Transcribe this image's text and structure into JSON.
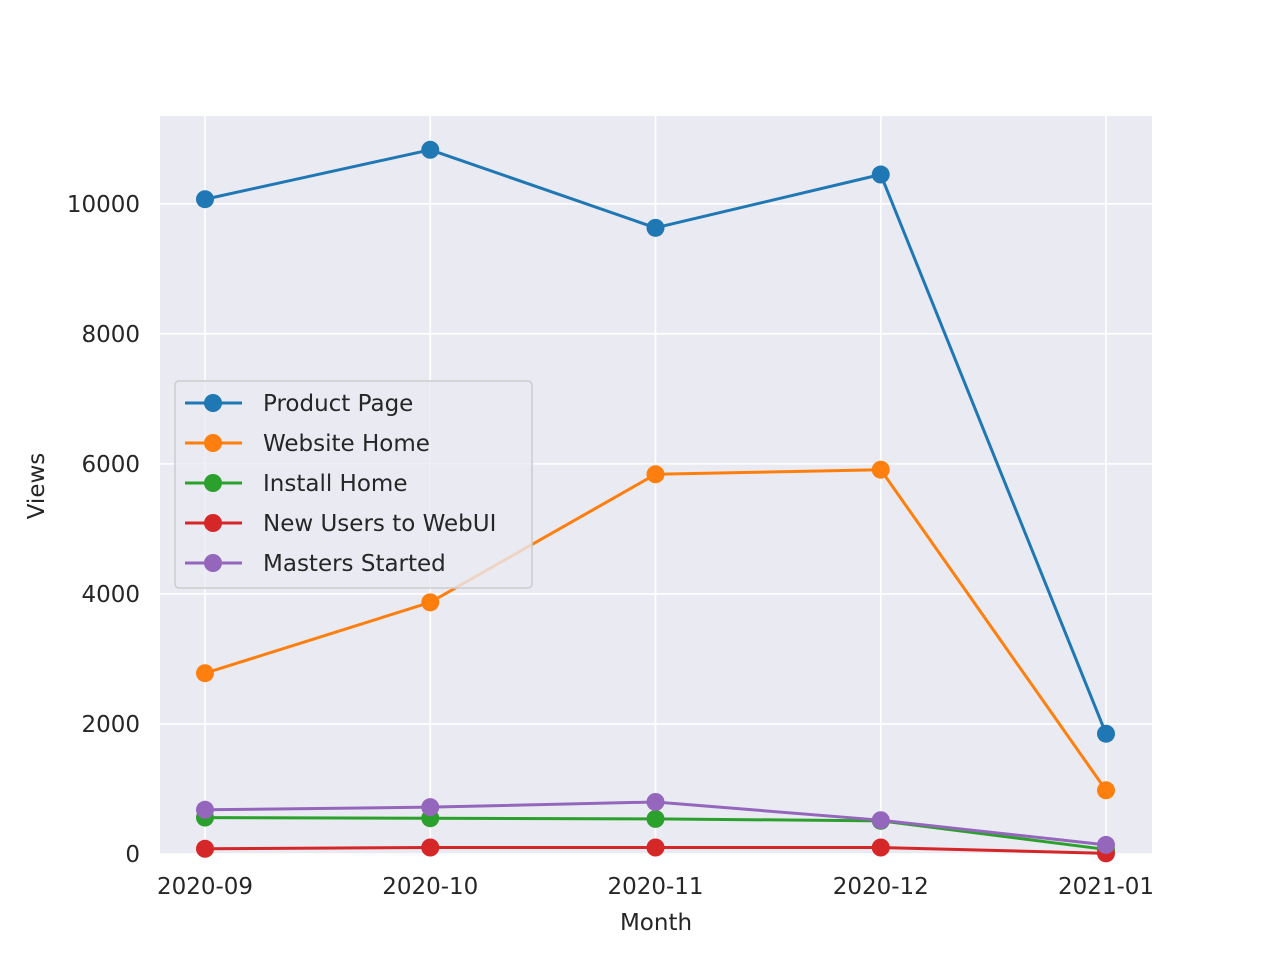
{
  "chart_data": {
    "type": "line",
    "title": "",
    "xlabel": "Month",
    "ylabel": "Views",
    "categories": [
      "2020-09",
      "2020-10",
      "2020-11",
      "2020-12",
      "2021-01"
    ],
    "ylim": [
      0,
      11350
    ],
    "yticks": [
      0,
      2000,
      4000,
      6000,
      8000,
      10000
    ],
    "grid": true,
    "legend_position": "center-left",
    "background": "#eaeaf2",
    "series": [
      {
        "name": "Product Page",
        "color": "#1f77b4",
        "values": [
          10070,
          10830,
          9630,
          10450,
          1850
        ]
      },
      {
        "name": "Website Home",
        "color": "#ff7f0e",
        "values": [
          2780,
          3870,
          5840,
          5910,
          980
        ]
      },
      {
        "name": "Install Home",
        "color": "#2ca02c",
        "values": [
          560,
          550,
          540,
          510,
          70
        ]
      },
      {
        "name": "New Users to WebUI",
        "color": "#d62728",
        "values": [
          80,
          100,
          100,
          100,
          10
        ]
      },
      {
        "name": "Masters Started",
        "color": "#9467bd",
        "values": [
          680,
          720,
          800,
          520,
          140
        ]
      }
    ]
  }
}
